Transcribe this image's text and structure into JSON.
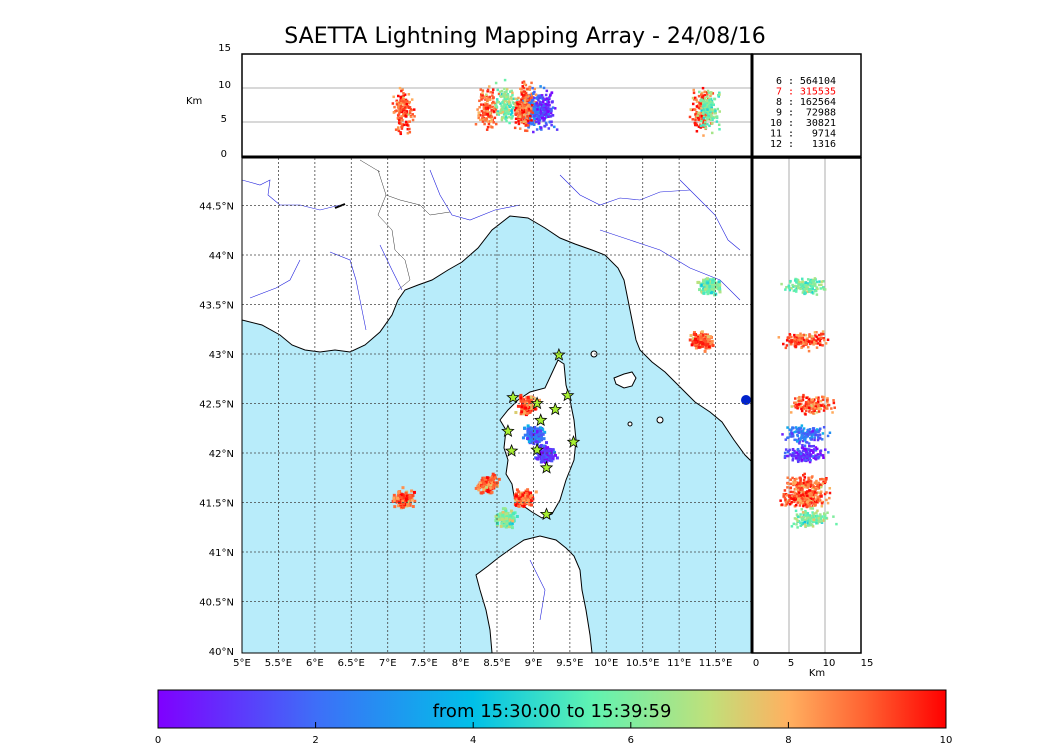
{
  "title": "SAETTA Lightning Mapping Array - 24/08/16",
  "top_panel": {
    "ylabel": "Km",
    "yticks": [
      "15",
      "10",
      "5",
      "0"
    ],
    "stats": [
      {
        "level": "6",
        "count": "564104",
        "color": "#000000"
      },
      {
        "level": "7",
        "count": "315535",
        "color": "#ff0000"
      },
      {
        "level": "8",
        "count": "162564",
        "color": "#000000"
      },
      {
        "level": "9",
        "count": "72988",
        "color": "#000000"
      },
      {
        "level": "10",
        "count": "30821",
        "color": "#000000"
      },
      {
        "level": "11",
        "count": "9714",
        "color": "#000000"
      },
      {
        "level": "12",
        "count": "1316",
        "color": "#000000"
      }
    ]
  },
  "map": {
    "lat_labels": [
      "44.5°N",
      "44°N",
      "43.5°N",
      "43°N",
      "42.5°N",
      "42°N",
      "41.5°N",
      "41°N",
      "40.5°N",
      "40°N"
    ],
    "lon_labels": [
      "5°E",
      "5.5°E",
      "6°E",
      "6.5°E",
      "7°E",
      "7.5°E",
      "8°E",
      "8.5°E",
      "9°E",
      "9.5°E",
      "10°E",
      "10.5°E",
      "11°E",
      "11.5°E"
    ],
    "sea_color": "#b8ecfa",
    "lon_range": [
      5,
      12
    ],
    "lat_range": [
      40,
      45
    ]
  },
  "side_panel": {
    "xlabel": "Km",
    "xticks": [
      "0",
      "5",
      "10",
      "15"
    ]
  },
  "colorbar": {
    "label": "from 15:30:00 to 15:39:59",
    "ticks": [
      "0",
      "2",
      "4",
      "6",
      "8",
      "10"
    ]
  },
  "chart_data": {
    "type": "scatter",
    "title": "SAETTA Lightning Mapping Array - 24/08/16",
    "xlim": [
      5,
      12
    ],
    "ylim": [
      40,
      45
    ],
    "altitude_range_km": [
      0,
      15
    ],
    "time_range_min": [
      0,
      10
    ],
    "clusters": [
      {
        "lon": 7.2,
        "lat": 41.55,
        "alt_km": 7,
        "time_min": 9
      },
      {
        "lon": 8.35,
        "lat": 41.7,
        "alt_km": 7,
        "time_min": 9
      },
      {
        "lon": 8.6,
        "lat": 41.35,
        "alt_km": 8,
        "time_min": 6
      },
      {
        "lon": 8.9,
        "lat": 42.5,
        "alt_km": 8,
        "time_min": 9
      },
      {
        "lon": 9.0,
        "lat": 42.2,
        "alt_km": 7,
        "time_min": 2
      },
      {
        "lon": 9.15,
        "lat": 42.0,
        "alt_km": 7,
        "time_min": 1
      },
      {
        "lon": 8.85,
        "lat": 41.55,
        "alt_km": 7,
        "time_min": 9
      },
      {
        "lon": 11.3,
        "lat": 43.15,
        "alt_km": 7,
        "time_min": 9
      },
      {
        "lon": 11.4,
        "lat": 43.7,
        "alt_km": 7,
        "time_min": 6
      }
    ]
  }
}
